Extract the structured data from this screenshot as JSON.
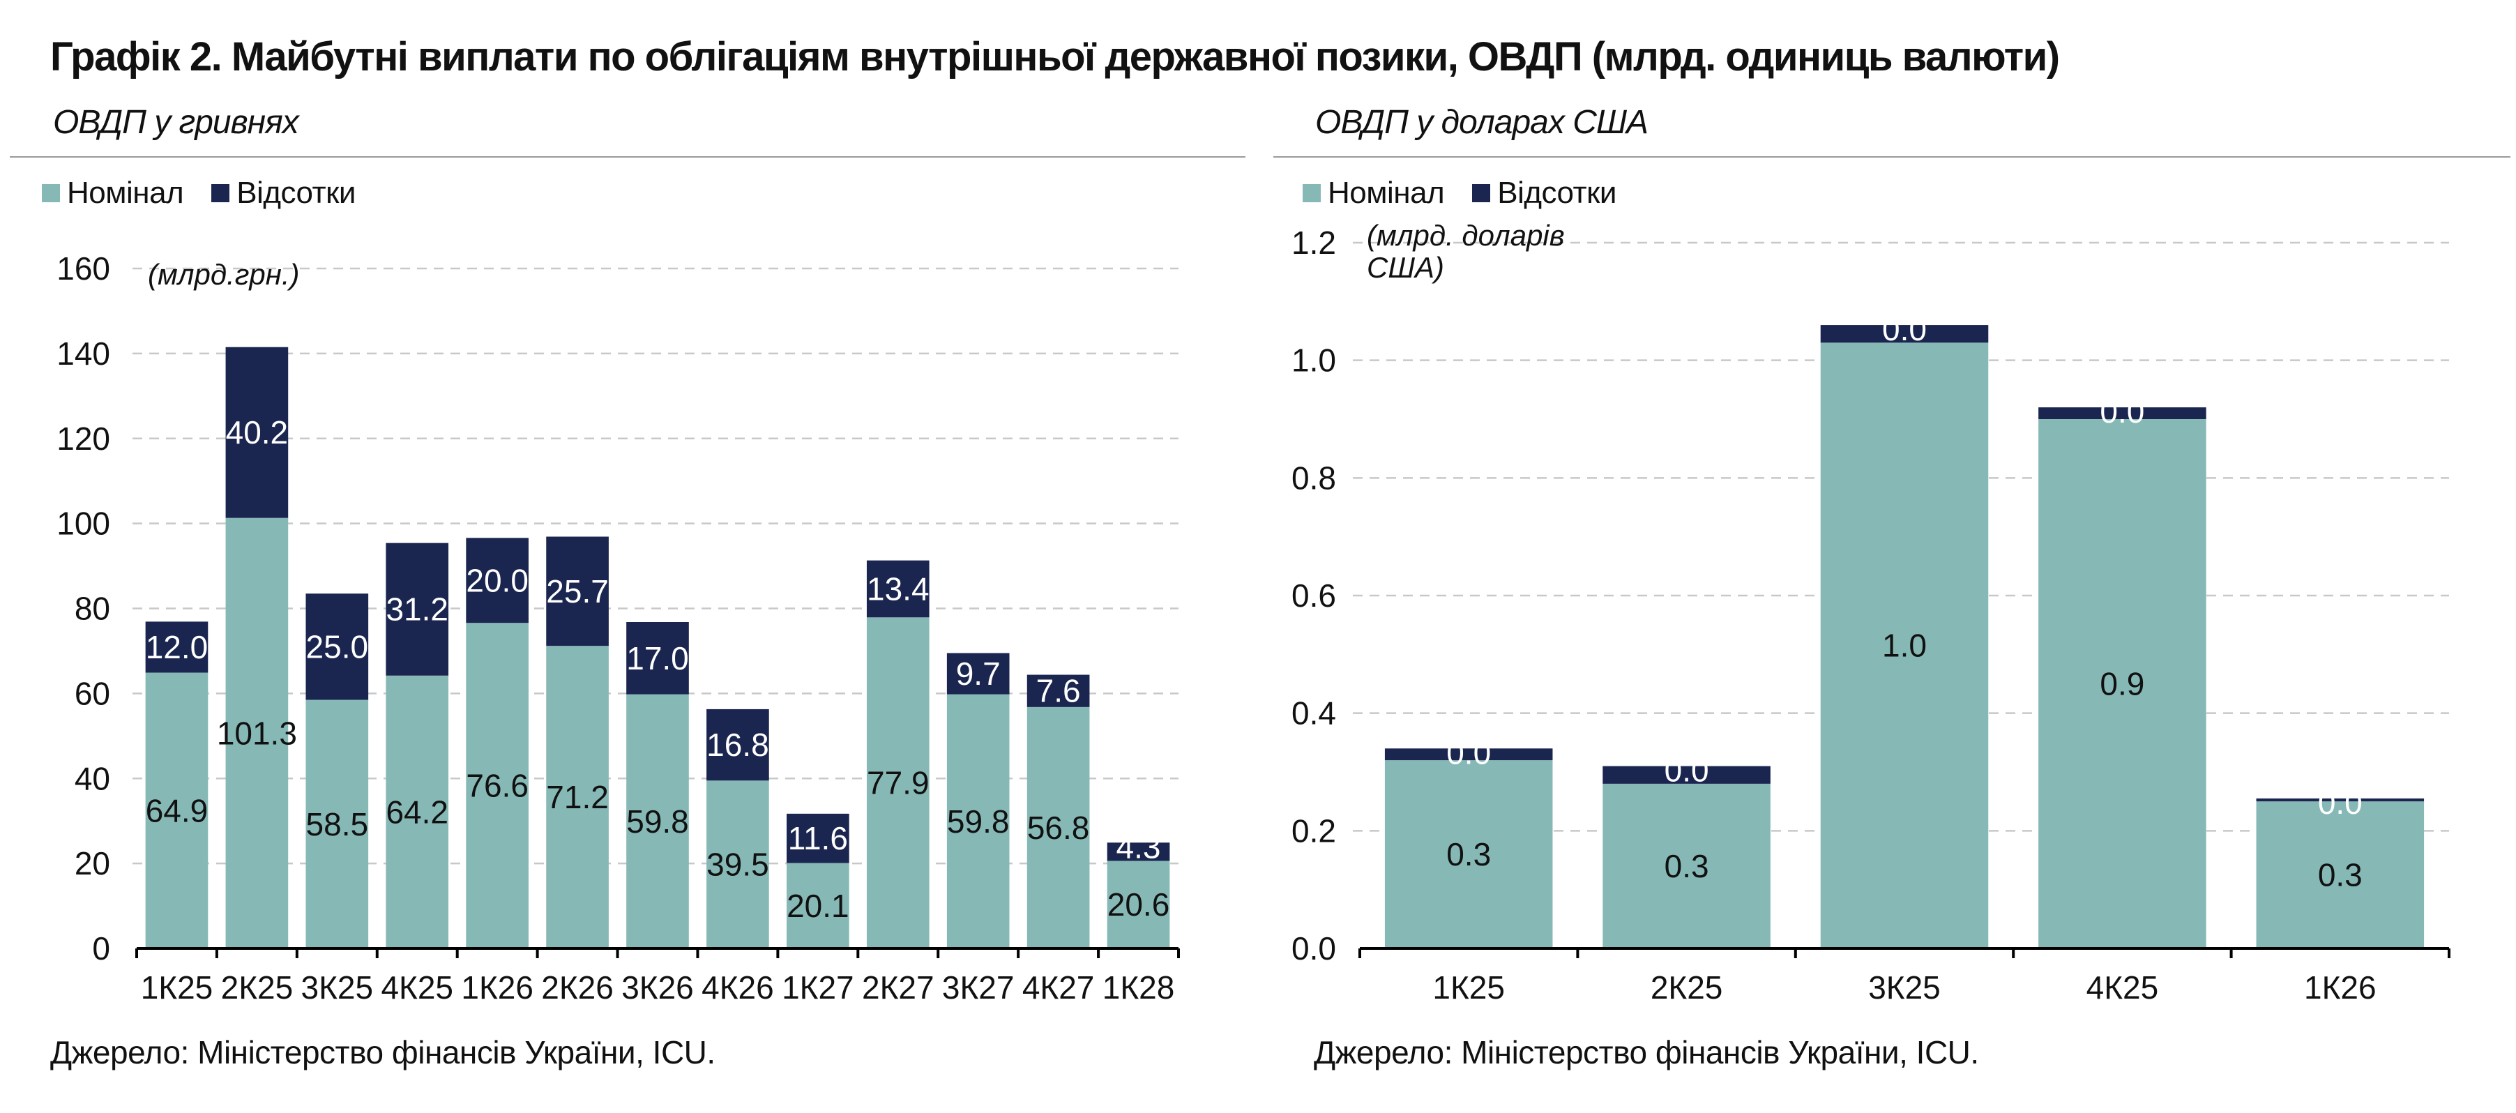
{
  "title": "Графік 2. Майбутні виплати по облігаціям внутрішньої державної позики, ОВДП (млрд. одиниць валюти)",
  "colors": {
    "nominal": "#86b9b6",
    "interest": "#1b2650",
    "grid": "#c8c8c8",
    "axis": "#000000"
  },
  "chart_data": [
    {
      "type": "bar",
      "stacked": true,
      "subtitle": "ОВДП у гривнях",
      "unit_note": "(млрд.грн.)",
      "legend": [
        "Номінал",
        "Відсотки"
      ],
      "legend_position": "top-left",
      "categories": [
        "1К25",
        "2К25",
        "3К25",
        "4К25",
        "1К26",
        "2К26",
        "3К26",
        "4К26",
        "1К27",
        "2К27",
        "3К27",
        "4К27",
        "1К28"
      ],
      "series": [
        {
          "name": "Номінал",
          "values": [
            64.9,
            101.3,
            58.5,
            64.2,
            76.6,
            71.2,
            59.8,
            39.5,
            20.1,
            77.9,
            59.8,
            56.8,
            20.6
          ],
          "labels": [
            "64.9",
            "101.3",
            "58.5",
            "64.2",
            "76.6",
            "71.2",
            "59.8",
            "39.5",
            "20.1",
            "77.9",
            "59.8",
            "56.8",
            "20.6"
          ]
        },
        {
          "name": "Відсотки",
          "values": [
            12.0,
            40.2,
            25.0,
            31.2,
            20.0,
            25.7,
            17.0,
            16.8,
            11.6,
            13.4,
            9.7,
            7.6,
            4.3
          ],
          "labels": [
            "12.0",
            "40.2",
            "25.0",
            "31.2",
            "20.0",
            "25.7",
            "17.0",
            "16.8",
            "11.6",
            "13.4",
            "9.7",
            "7.6",
            "4.3"
          ]
        }
      ],
      "ylim": [
        0,
        160
      ],
      "yticks": [
        0,
        20,
        40,
        60,
        80,
        100,
        120,
        140,
        160
      ],
      "ytick_labels": [
        "0",
        "20",
        "40",
        "60",
        "80",
        "100",
        "120",
        "140",
        "160"
      ],
      "grid": true,
      "source": "Джерело: Міністерство фінансів України, ICU."
    },
    {
      "type": "bar",
      "stacked": true,
      "subtitle": "ОВДП у доларах США",
      "unit_note": [
        "(млрд. доларів",
        "США)"
      ],
      "legend": [
        "Номінал",
        "Відсотки"
      ],
      "legend_position": "top-left",
      "categories": [
        "1К25",
        "2К25",
        "3К25",
        "4К25",
        "1К26"
      ],
      "series": [
        {
          "name": "Номінал",
          "values": [
            0.32,
            0.28,
            1.03,
            0.9,
            0.25
          ],
          "labels": [
            "0.3",
            "0.3",
            "1.0",
            "0.9",
            "0.3"
          ]
        },
        {
          "name": "Відсотки",
          "values": [
            0.02,
            0.03,
            0.03,
            0.02,
            0.005
          ],
          "labels": [
            "0.0",
            "0.0",
            "0.0",
            "0.0",
            "0.0"
          ]
        }
      ],
      "ylim": [
        0,
        1.2
      ],
      "yticks": [
        0,
        0.2,
        0.4,
        0.6,
        0.8,
        1.0,
        1.2
      ],
      "ytick_labels": [
        "0.0",
        "0.2",
        "0.4",
        "0.6",
        "0.8",
        "1.0",
        "1.2"
      ],
      "grid": true,
      "source": "Джерело: Міністерство фінансів України, ICU."
    }
  ]
}
